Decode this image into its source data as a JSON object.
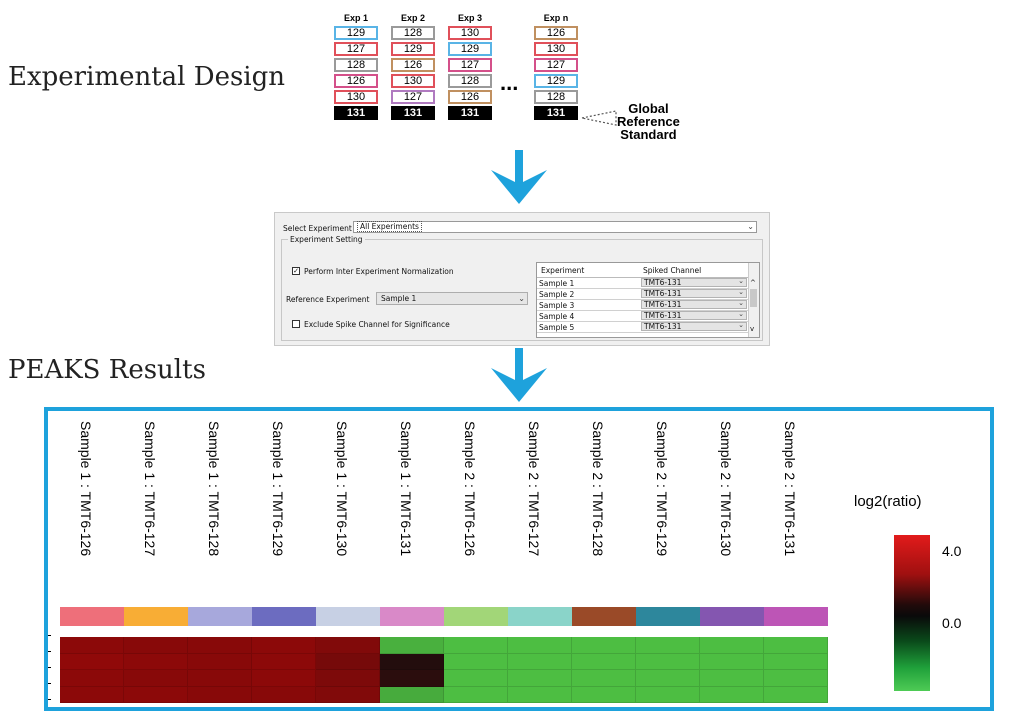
{
  "design": {
    "title": "Experimental Design",
    "experiments": [
      {
        "header": "Exp 1",
        "cells": [
          {
            "v": "129",
            "c": "blue"
          },
          {
            "v": "127",
            "c": "red"
          },
          {
            "v": "128",
            "c": "gray"
          },
          {
            "v": "126",
            "c": "pink"
          },
          {
            "v": "130",
            "c": "red"
          },
          {
            "v": "131",
            "c": "ref"
          }
        ]
      },
      {
        "header": "Exp 2",
        "cells": [
          {
            "v": "128",
            "c": "gray"
          },
          {
            "v": "129",
            "c": "red"
          },
          {
            "v": "126",
            "c": "tan"
          },
          {
            "v": "130",
            "c": "red"
          },
          {
            "v": "127",
            "c": "purple"
          },
          {
            "v": "131",
            "c": "ref"
          }
        ]
      },
      {
        "header": "Exp 3",
        "cells": [
          {
            "v": "130",
            "c": "red"
          },
          {
            "v": "129",
            "c": "blue"
          },
          {
            "v": "127",
            "c": "pink"
          },
          {
            "v": "128",
            "c": "gray"
          },
          {
            "v": "126",
            "c": "tan"
          },
          {
            "v": "131",
            "c": "ref"
          }
        ]
      },
      {
        "header": "Exp n",
        "cells": [
          {
            "v": "126",
            "c": "tan"
          },
          {
            "v": "130",
            "c": "red"
          },
          {
            "v": "127",
            "c": "pink"
          },
          {
            "v": "129",
            "c": "blue"
          },
          {
            "v": "128",
            "c": "gray"
          },
          {
            "v": "131",
            "c": "ref"
          }
        ]
      }
    ],
    "ellipsis": "...",
    "global_ref_label": [
      "Global",
      "Reference",
      "Standard"
    ]
  },
  "settings": {
    "select_label": "Select Experiment",
    "select_value": "All Experiments",
    "group_label": "Experiment Setting",
    "normalization_label": "Perform Inter Experiment Normalization",
    "normalization_checked": true,
    "reference_label": "Reference Experiment",
    "reference_value": "Sample 1",
    "exclude_label": "Exclude Spike Channel for Significance",
    "exclude_checked": false,
    "table": {
      "headers": [
        "Experiment",
        "Spiked Channel"
      ],
      "rows": [
        {
          "experiment": "Sample 1",
          "channel": "TMT6-131"
        },
        {
          "experiment": "Sample 2",
          "channel": "TMT6-131"
        },
        {
          "experiment": "Sample 3",
          "channel": "TMT6-131"
        },
        {
          "experiment": "Sample 4",
          "channel": "TMT6-131"
        },
        {
          "experiment": "Sample 5",
          "channel": "TMT6-131"
        }
      ]
    }
  },
  "results": {
    "title": "PEAKS Results",
    "columns": [
      {
        "label": "Sample 1 : TMT6-126",
        "color": "#ee6f7a"
      },
      {
        "label": "Sample 1 : TMT6-127",
        "color": "#f8ad35"
      },
      {
        "label": "Sample 1 : TMT6-128",
        "color": "#a7a8dc"
      },
      {
        "label": "Sample 1 : TMT6-129",
        "color": "#6c6cc0"
      },
      {
        "label": "Sample 1 : TMT6-130",
        "color": "#c7d0e4"
      },
      {
        "label": "Sample 1 : TMT6-131",
        "color": "#d989c8"
      },
      {
        "label": "Sample 2 : TMT6-126",
        "color": "#a2d678"
      },
      {
        "label": "Sample 2 : TMT6-127",
        "color": "#8ad4c9"
      },
      {
        "label": "Sample 2 : TMT6-128",
        "color": "#9a4a28"
      },
      {
        "label": "Sample 2 : TMT6-129",
        "color": "#2d879c"
      },
      {
        "label": "Sample 2 : TMT6-130",
        "color": "#8456b0"
      },
      {
        "label": "Sample 2 : TMT6-131",
        "color": "#bd55b6"
      }
    ],
    "legend_title": "log2(ratio)",
    "legend_max": "4.0",
    "legend_mid": "0.0"
  },
  "chart_data": {
    "type": "heatmap",
    "x": [
      "Sample 1 : TMT6-126",
      "Sample 1 : TMT6-127",
      "Sample 1 : TMT6-128",
      "Sample 1 : TMT6-129",
      "Sample 1 : TMT6-130",
      "Sample 1 : TMT6-131",
      "Sample 2 : TMT6-126",
      "Sample 2 : TMT6-127",
      "Sample 2 : TMT6-128",
      "Sample 2 : TMT6-129",
      "Sample 2 : TMT6-130",
      "Sample 2 : TMT6-131"
    ],
    "scale_label": "log2(ratio)",
    "scale_ticks": [
      4.0,
      0.0
    ],
    "values": [
      [
        3.2,
        3.1,
        3.1,
        3.2,
        2.9,
        -3.5,
        -3.8,
        -3.8,
        -3.8,
        -3.8,
        -3.8,
        -3.8
      ],
      [
        3.3,
        3.2,
        3.1,
        3.2,
        2.6,
        0.4,
        -3.8,
        -3.8,
        -3.8,
        -3.8,
        -3.8,
        -3.8
      ],
      [
        3.2,
        3.1,
        3.1,
        3.2,
        2.8,
        0.6,
        -3.8,
        -3.8,
        -3.8,
        -3.8,
        -3.8,
        -3.8
      ],
      [
        3.2,
        3.2,
        3.1,
        3.1,
        2.9,
        -3.4,
        -3.8,
        -3.8,
        -3.8,
        -3.8,
        -3.8,
        -3.8
      ]
    ]
  }
}
